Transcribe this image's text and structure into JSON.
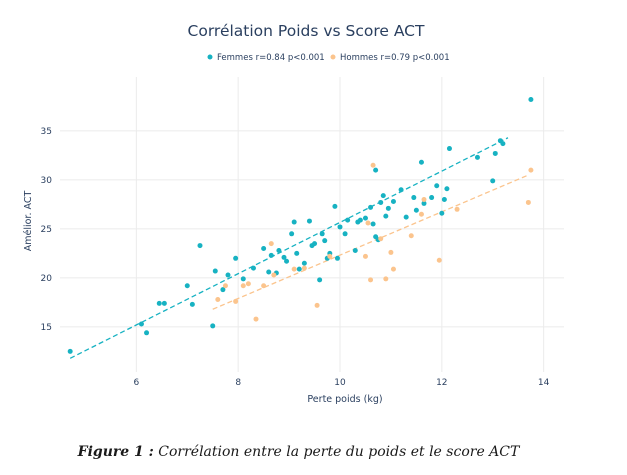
{
  "chart_data": {
    "type": "scatter",
    "title": "Corrélation Poids vs Score ACT",
    "xlabel": "Perte poids (kg)",
    "ylabel": "Amélior. ACT",
    "xlim": [
      4.5,
      14.4
    ],
    "ylim": [
      10.4,
      40.5
    ],
    "xticks": [
      6,
      8,
      10,
      12,
      14
    ],
    "yticks": [
      15,
      20,
      25,
      30,
      35
    ],
    "grid": true,
    "legend_position": "top-center",
    "series": [
      {
        "name": "Femmes r=0.84 p<0.001",
        "color": "#17b2c2",
        "trend": [
          [
            4.7,
            11.8
          ],
          [
            13.3,
            34.3
          ]
        ],
        "points": [
          [
            4.7,
            12.5
          ],
          [
            6.1,
            15.3
          ],
          [
            6.2,
            14.4
          ],
          [
            6.45,
            17.4
          ],
          [
            6.55,
            17.4
          ],
          [
            7.0,
            19.2
          ],
          [
            7.1,
            17.3
          ],
          [
            7.25,
            23.3
          ],
          [
            7.5,
            15.1
          ],
          [
            7.55,
            20.7
          ],
          [
            7.7,
            18.8
          ],
          [
            7.8,
            20.3
          ],
          [
            7.95,
            22.0
          ],
          [
            8.1,
            19.9
          ],
          [
            8.3,
            21.0
          ],
          [
            8.5,
            23.0
          ],
          [
            8.6,
            20.6
          ],
          [
            8.65,
            22.3
          ],
          [
            8.75,
            20.5
          ],
          [
            8.8,
            22.8
          ],
          [
            8.9,
            22.1
          ],
          [
            8.95,
            21.7
          ],
          [
            9.05,
            24.5
          ],
          [
            9.1,
            25.7
          ],
          [
            9.15,
            22.5
          ],
          [
            9.2,
            20.9
          ],
          [
            9.3,
            21.5
          ],
          [
            9.4,
            25.8
          ],
          [
            9.45,
            23.3
          ],
          [
            9.5,
            23.5
          ],
          [
            9.6,
            19.8
          ],
          [
            9.65,
            24.5
          ],
          [
            9.7,
            23.8
          ],
          [
            9.75,
            22.0
          ],
          [
            9.8,
            22.5
          ],
          [
            9.9,
            27.3
          ],
          [
            9.95,
            22.0
          ],
          [
            10.0,
            25.2
          ],
          [
            10.1,
            24.5
          ],
          [
            10.15,
            25.9
          ],
          [
            10.3,
            22.8
          ],
          [
            10.35,
            25.7
          ],
          [
            10.4,
            25.9
          ],
          [
            10.5,
            26.1
          ],
          [
            10.6,
            27.2
          ],
          [
            10.65,
            25.5
          ],
          [
            10.7,
            24.2
          ],
          [
            10.75,
            23.9
          ],
          [
            10.8,
            27.7
          ],
          [
            10.85,
            28.4
          ],
          [
            10.9,
            26.3
          ],
          [
            10.95,
            27.1
          ],
          [
            11.05,
            27.8
          ],
          [
            11.2,
            29.0
          ],
          [
            11.3,
            26.2
          ],
          [
            11.45,
            28.2
          ],
          [
            11.5,
            26.9
          ],
          [
            11.6,
            31.8
          ],
          [
            11.65,
            27.6
          ],
          [
            11.8,
            28.2
          ],
          [
            11.9,
            29.4
          ],
          [
            12.0,
            26.6
          ],
          [
            12.05,
            28.0
          ],
          [
            12.1,
            29.1
          ],
          [
            12.15,
            33.2
          ],
          [
            12.7,
            32.3
          ],
          [
            13.0,
            29.9
          ],
          [
            13.05,
            32.7
          ],
          [
            13.15,
            34.0
          ],
          [
            13.2,
            33.7
          ],
          [
            13.75,
            38.2
          ],
          [
            10.7,
            31.0
          ]
        ]
      },
      {
        "name": "Hommes r=0.79 p<0.001",
        "color": "#fbc48d",
        "trend": [
          [
            7.5,
            16.8
          ],
          [
            13.7,
            30.5
          ]
        ],
        "points": [
          [
            7.6,
            17.8
          ],
          [
            7.75,
            19.2
          ],
          [
            7.95,
            17.6
          ],
          [
            8.1,
            19.2
          ],
          [
            8.2,
            19.4
          ],
          [
            8.35,
            15.8
          ],
          [
            8.5,
            19.2
          ],
          [
            8.65,
            23.5
          ],
          [
            8.7,
            20.3
          ],
          [
            9.1,
            20.9
          ],
          [
            9.3,
            21.0
          ],
          [
            9.55,
            17.2
          ],
          [
            9.8,
            22.2
          ],
          [
            10.5,
            22.2
          ],
          [
            10.55,
            25.6
          ],
          [
            10.6,
            19.8
          ],
          [
            10.65,
            31.5
          ],
          [
            10.8,
            24.0
          ],
          [
            10.9,
            19.9
          ],
          [
            11.0,
            22.6
          ],
          [
            11.05,
            20.9
          ],
          [
            11.4,
            24.3
          ],
          [
            11.6,
            26.5
          ],
          [
            11.65,
            28.0
          ],
          [
            11.95,
            21.8
          ],
          [
            12.3,
            27.0
          ],
          [
            13.7,
            27.7
          ],
          [
            13.75,
            31.0
          ]
        ]
      }
    ]
  },
  "caption": {
    "label": "Figure 1 :",
    "text": " Corrélation entre la perte du poids et le score ACT"
  }
}
